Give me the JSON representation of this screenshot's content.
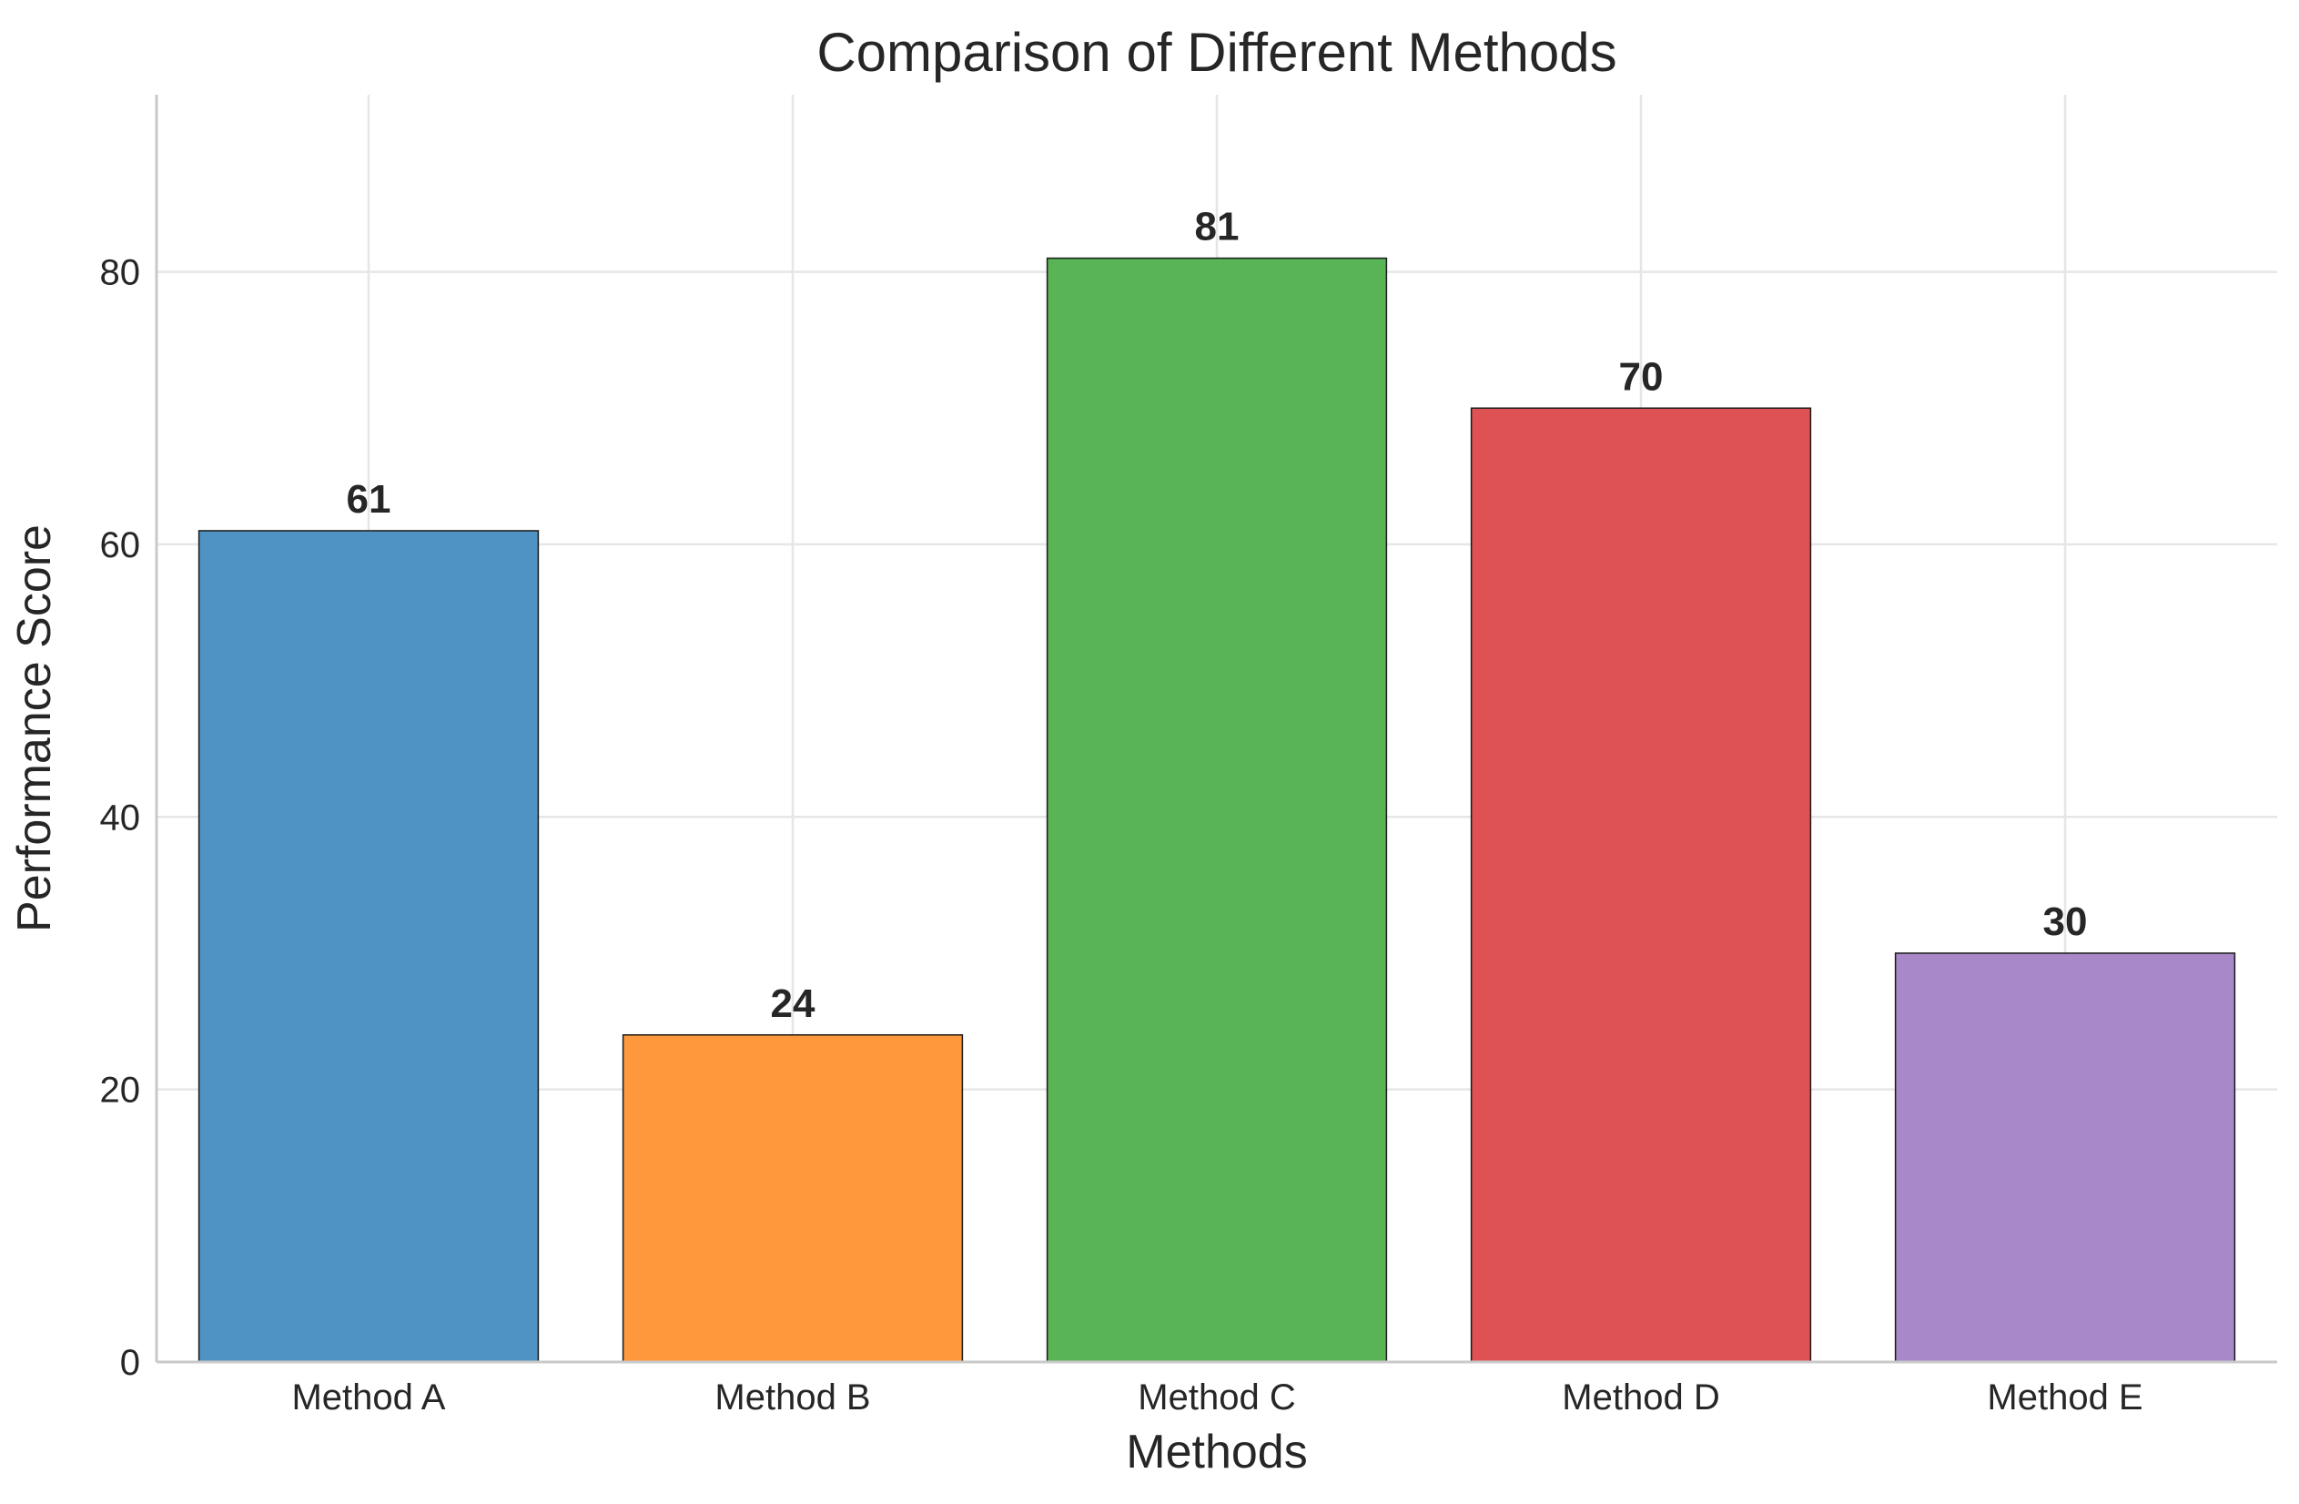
{
  "chart_data": {
    "type": "bar",
    "title": "Comparison of Different Methods",
    "xlabel": "Methods",
    "ylabel": "Performance Score",
    "categories": [
      "Method A",
      "Method B",
      "Method C",
      "Method D",
      "Method E"
    ],
    "values": [
      61,
      24,
      81,
      70,
      30
    ],
    "data_labels": [
      "61",
      "24",
      "81",
      "70",
      "30"
    ],
    "colors": [
      "#4e93c3",
      "#fd983c",
      "#59b456",
      "#de5253",
      "#a888c8"
    ],
    "ylim": [
      0,
      93
    ],
    "yticks": [
      0,
      20,
      40,
      60,
      80
    ],
    "ytick_labels": [
      "0",
      "20",
      "40",
      "60",
      "80"
    ],
    "grid": true,
    "legend": "none"
  }
}
